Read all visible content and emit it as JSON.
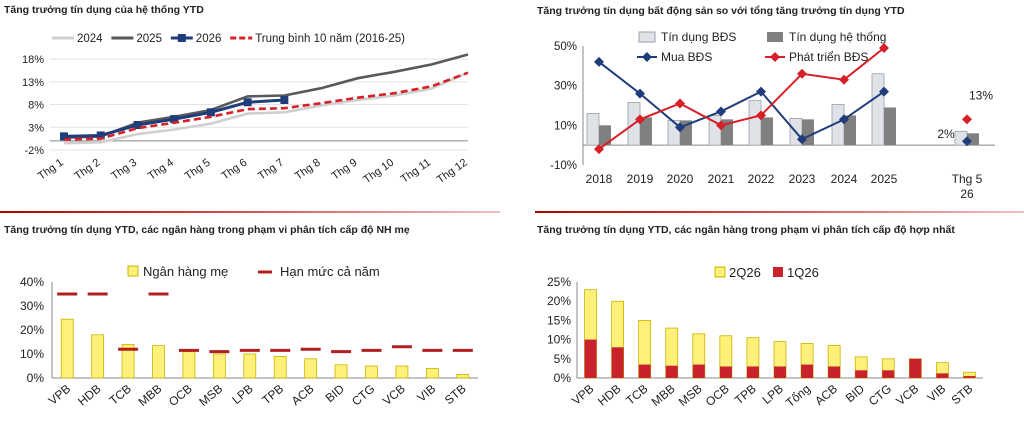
{
  "chart_data": [
    {
      "id": "p1",
      "type": "line",
      "title": "Tăng trưởng tín dụng của hệ thống YTD",
      "categories": [
        "Thg 1",
        "Thg 2",
        "Thg 3",
        "Thg 4",
        "Thg 5",
        "Thg 6",
        "Thg 7",
        "Thg 8",
        "Thg 9",
        "Thg 10",
        "Thg 11",
        "Thg 12"
      ],
      "yticks": [
        "-2%",
        "3%",
        "8%",
        "13%",
        "18%"
      ],
      "ylim": [
        -2,
        20
      ],
      "grid": true,
      "legend_position": "top",
      "series": [
        {
          "name": "2024",
          "color": "#cfcfcf",
          "style": "solid",
          "values": [
            -0.5,
            -0.3,
            1.5,
            2.5,
            3.8,
            6.0,
            6.3,
            7.8,
            9.0,
            10.0,
            11.5,
            15.0
          ]
        },
        {
          "name": "2025",
          "color": "#595959",
          "style": "solid",
          "values": [
            0.7,
            1.0,
            4.0,
            5.3,
            6.8,
            9.8,
            10.0,
            11.6,
            13.8,
            15.2,
            16.8,
            19.0
          ]
        },
        {
          "name": "2026",
          "color": "#1f3d7a",
          "style": "marker",
          "values": [
            1.0,
            1.2,
            3.5,
            4.8,
            6.3,
            8.5,
            9.0,
            null,
            null,
            null,
            null,
            null
          ]
        },
        {
          "name": "Trung bình 10 năm (2016-25)",
          "color": "#d62027",
          "style": "dashed",
          "values": [
            0.3,
            0.5,
            2.8,
            4.0,
            5.3,
            7.0,
            7.2,
            8.3,
            9.5,
            10.5,
            12.0,
            15.0
          ]
        }
      ]
    },
    {
      "id": "p2",
      "type": "bar",
      "title": "Tăng trưởng tín dụng bất động sản so với tổng tăng trưởng tín dụng YTD",
      "categories": [
        "2018",
        "2019",
        "2020",
        "2021",
        "2022",
        "2023",
        "2024",
        "2025",
        "Thg 5\n26"
      ],
      "yticks": [
        "-10%",
        "10%",
        "30%",
        "50%"
      ],
      "ylim": [
        -10,
        50
      ],
      "legend_position": "top",
      "series": [
        {
          "name": "Tín dụng BĐS",
          "color": "#dfe3e8",
          "values": [
            16,
            21.5,
            12.5,
            15,
            22.5,
            13.5,
            20.5,
            36,
            7
          ]
        },
        {
          "name": "Tín dụng hệ thống",
          "color": "#808080",
          "values": [
            10,
            14,
            12.5,
            13,
            14,
            13,
            15,
            19,
            6
          ]
        },
        {
          "name": "Mua BĐS",
          "color": "#1f3d7a",
          "values": [
            42,
            26,
            9,
            17,
            27,
            3,
            13,
            27,
            2
          ]
        },
        {
          "name": "Phát triển BĐS",
          "color": "#d62027",
          "values": [
            -2,
            13,
            21,
            10,
            15,
            36,
            33,
            49,
            13
          ]
        }
      ],
      "annotations": [
        "2%",
        "13%"
      ]
    },
    {
      "id": "p3",
      "type": "bar",
      "title": "Tăng trưởng tín dụng YTD, các ngân hàng trong phạm vi phân tích cấp độ NH mẹ",
      "categories": [
        "VPB",
        "HDB",
        "TCB",
        "MBB",
        "OCB",
        "MSB",
        "LPB",
        "TPB",
        "ACB",
        "BID",
        "CTG",
        "VCB",
        "VIB",
        "STB"
      ],
      "yticks": [
        "0%",
        "10%",
        "20%",
        "30%",
        "40%"
      ],
      "ylim": [
        0,
        40
      ],
      "legend_position": "top",
      "series": [
        {
          "name": "Ngân hàng mẹ",
          "color": "#fff07a",
          "values": [
            24.5,
            18,
            14,
            13.5,
            11,
            10,
            10,
            9,
            8,
            5.5,
            5,
            5,
            4,
            1.5
          ]
        },
        {
          "name": "Hạn mức cả năm",
          "color": "#b01f1f",
          "values": [
            35,
            35,
            12,
            35,
            11.5,
            11,
            11.5,
            11.5,
            12,
            11,
            11.5,
            13,
            11.5,
            11.5
          ]
        }
      ]
    },
    {
      "id": "p4",
      "type": "bar",
      "title": "Tăng trưởng tín dụng YTD, các ngân hàng trong phạm vi phân tích cấp độ hợp nhất",
      "categories": [
        "VPB",
        "HDB",
        "TCB",
        "MBB",
        "MSB",
        "OCB",
        "TPB",
        "LPB",
        "Tổng",
        "ACB",
        "BID",
        "CTG",
        "VCB",
        "VIB",
        "STB"
      ],
      "yticks": [
        "0%",
        "5%",
        "10%",
        "15%",
        "20%",
        "25%"
      ],
      "ylim": [
        0,
        25
      ],
      "legend_position": "top-left",
      "series": [
        {
          "name": "2Q26",
          "color": "#fff07a",
          "values": [
            23,
            20,
            15,
            13,
            11.5,
            11,
            10.5,
            9.5,
            9,
            8.5,
            5.5,
            5,
            5,
            4,
            1.5
          ]
        },
        {
          "name": "1Q26",
          "color": "#c8232c",
          "values": [
            10,
            8,
            3.5,
            3.2,
            3.5,
            3,
            3,
            3,
            3.5,
            3,
            2,
            2,
            5,
            1.2,
            0.5
          ]
        }
      ]
    }
  ]
}
